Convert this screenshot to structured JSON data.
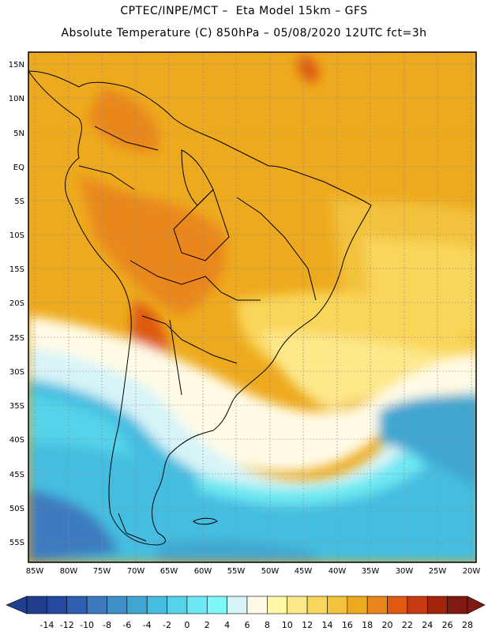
{
  "header": {
    "line1": "CPTEC/INPE/MCT –  Eta Model 15km – GFS",
    "line2": "Absolute Temperature (C) 850hPa – 05/08/2020 12UTC fct=3h"
  },
  "map": {
    "region": "South America",
    "lat_labels": [
      "15N",
      "10N",
      "5N",
      "EQ",
      "5S",
      "10S",
      "15S",
      "20S",
      "25S",
      "30S",
      "35S",
      "40S",
      "45S",
      "50S",
      "55S"
    ],
    "lon_labels": [
      "85W",
      "80W",
      "75W",
      "70W",
      "65W",
      "60W",
      "55W",
      "50W",
      "45W",
      "40W",
      "35W",
      "30W",
      "25W",
      "20W"
    ]
  },
  "colorbar": {
    "labels": [
      "-14",
      "-12",
      "-10",
      "-8",
      "-6",
      "-4",
      "-2",
      "0",
      "2",
      "4",
      "6",
      "8",
      "10",
      "12",
      "14",
      "16",
      "18",
      "20",
      "22",
      "24",
      "26",
      "28"
    ],
    "colors": [
      "#1f3e8e",
      "#24499f",
      "#2f5fb0",
      "#3c7abf",
      "#3f8fc8",
      "#40a6d1",
      "#44bde0",
      "#55d3ea",
      "#6ee8f2",
      "#7df7f7",
      "#d7f4f8",
      "#fffbe6",
      "#fff7a6",
      "#fde88a",
      "#f9d65a",
      "#f3c23d",
      "#eeaa1e",
      "#e9871c",
      "#df5a10",
      "#c83a0f",
      "#a3240d",
      "#7f1a12"
    ]
  },
  "colors": {
    "border": "#000000",
    "grid": "#8a8a8a"
  }
}
